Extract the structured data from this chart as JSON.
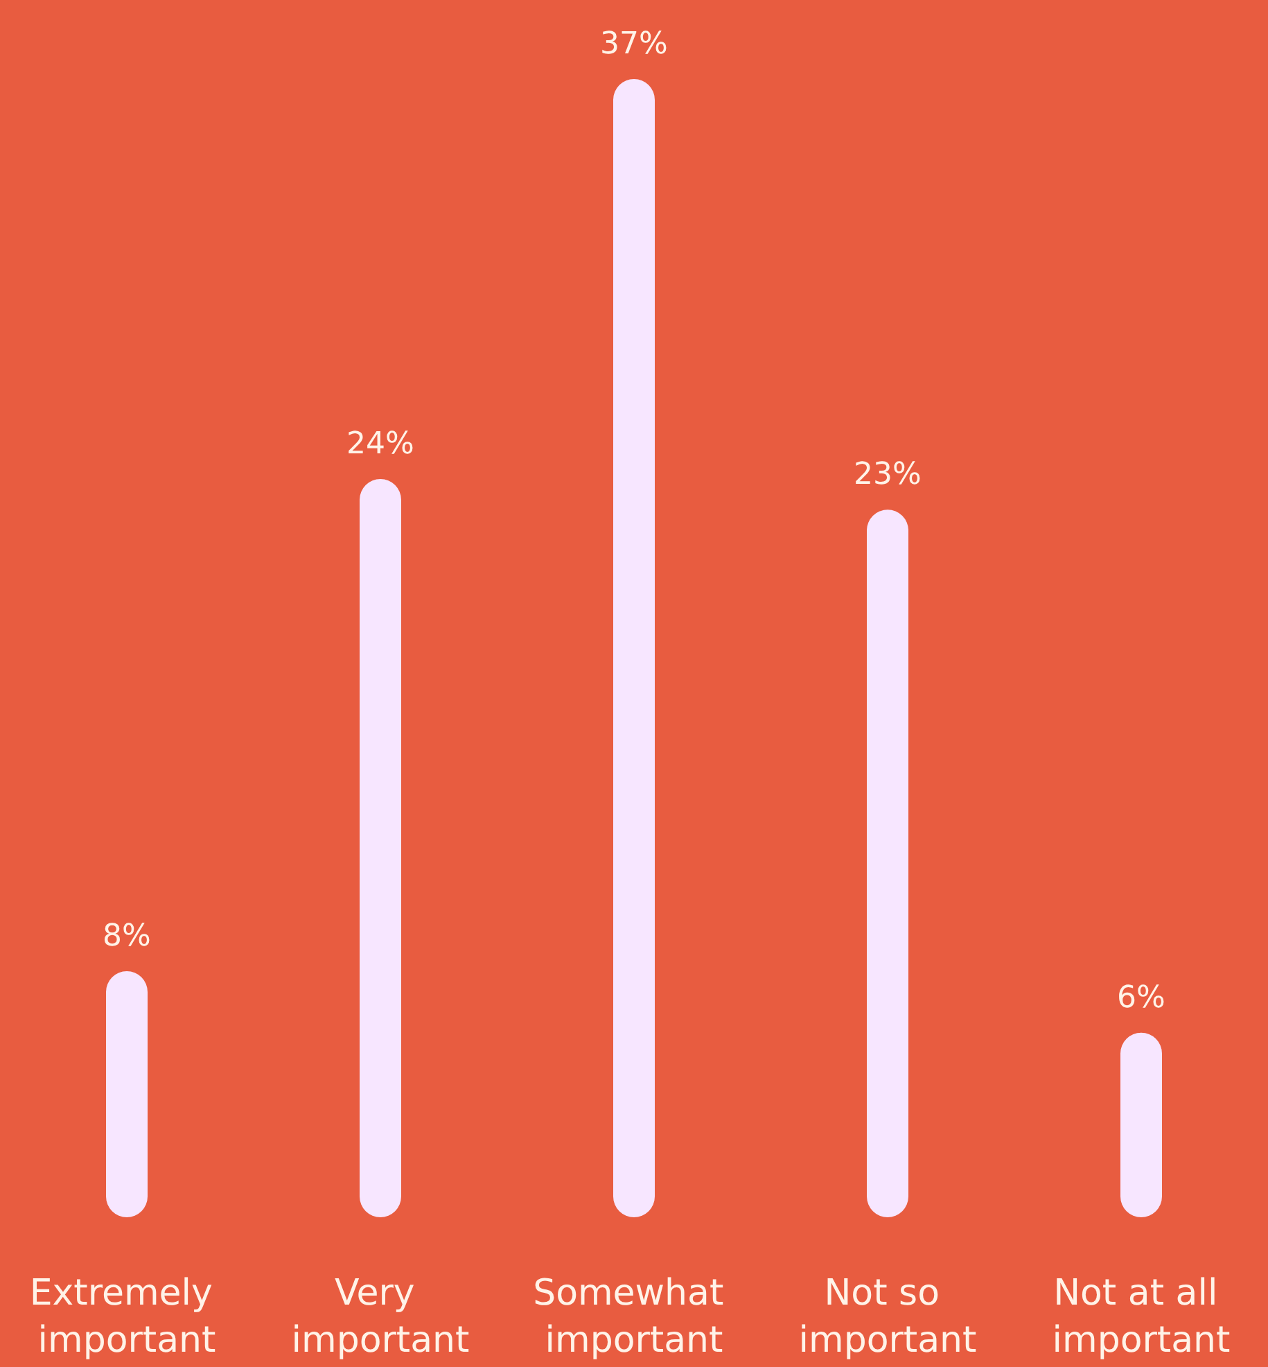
{
  "chart_data": {
    "type": "bar",
    "categories": [
      "Extremely important",
      "Very important",
      "Somewhat important",
      "Not so important",
      "Not at all important"
    ],
    "values": [
      8,
      24,
      37,
      23,
      6
    ],
    "value_labels": [
      "8%",
      "24%",
      "37%",
      "23%",
      "6%"
    ],
    "color": "#f7e6ff"
  }
}
